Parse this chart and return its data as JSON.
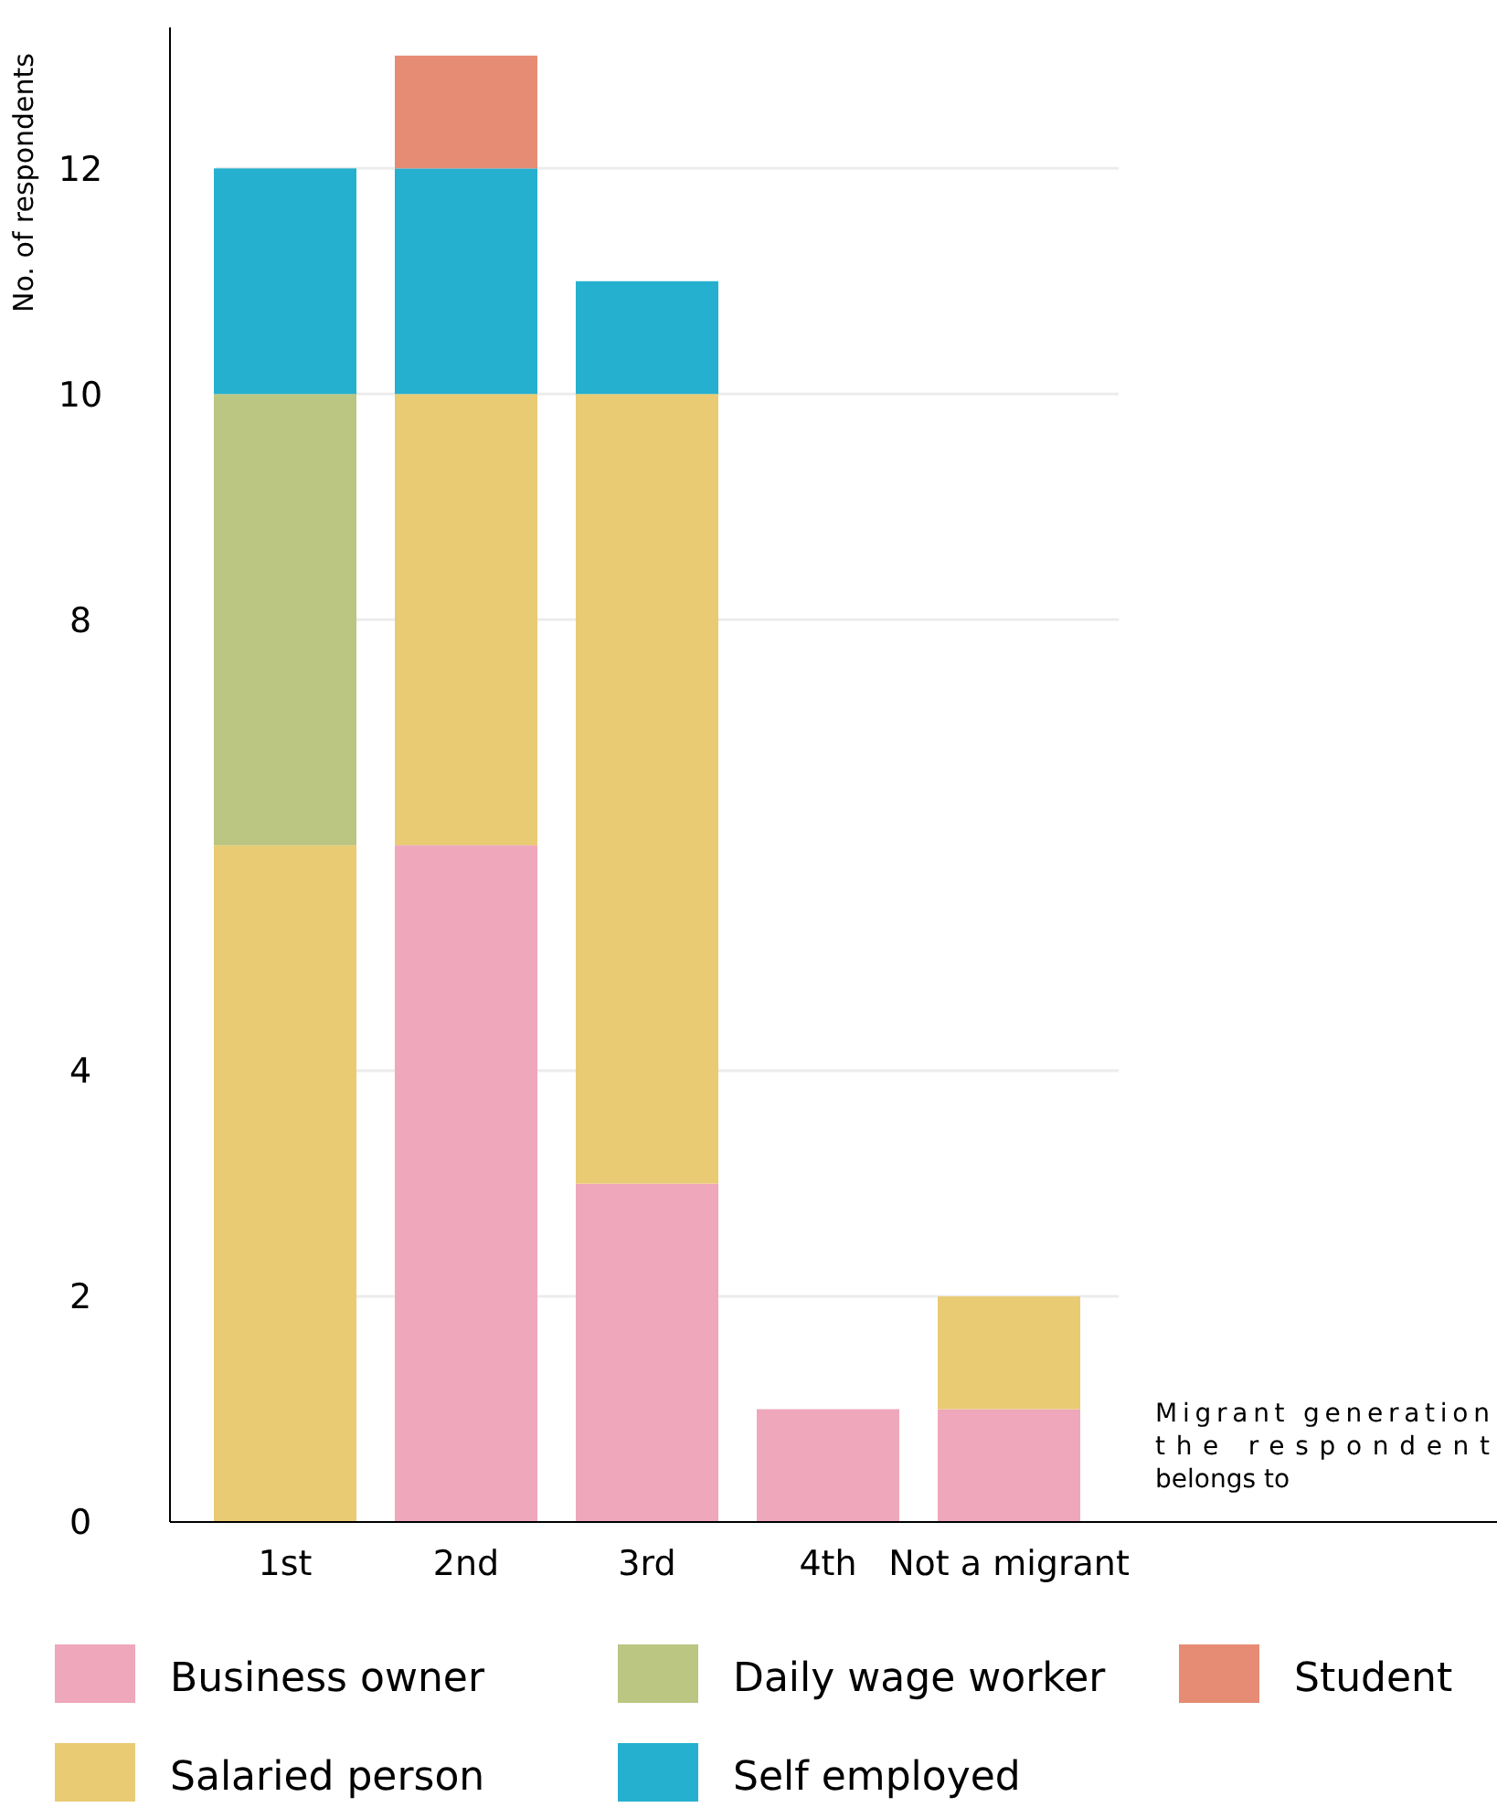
{
  "chart_data": {
    "type": "bar",
    "stacked": true,
    "ylabel": "No. of respondents",
    "xlabel": "Migrant generation the respondent belongs to",
    "categories": [
      "1st",
      "2nd",
      "3rd",
      "4th",
      "Not a migrant"
    ],
    "series": [
      {
        "name": "Business owner",
        "color": "#efa7bb",
        "values": [
          0,
          6,
          3,
          1,
          1
        ]
      },
      {
        "name": "Salaried person",
        "color": "#e9cb74",
        "values": [
          6,
          4,
          7,
          0,
          1
        ]
      },
      {
        "name": "Daily wage worker",
        "color": "#bac682",
        "values": [
          4,
          0,
          0,
          0,
          0
        ]
      },
      {
        "name": "Self employed",
        "color": "#25b0cf",
        "values": [
          2,
          2,
          1,
          0,
          0
        ]
      },
      {
        "name": "Student",
        "color": "#e68c74",
        "values": [
          0,
          1,
          0,
          0,
          0
        ]
      }
    ],
    "ylim": [
      0,
      13.25
    ],
    "yticks": [
      0,
      2,
      4,
      8,
      10,
      12
    ],
    "grid": "y",
    "legend": "bottom"
  }
}
